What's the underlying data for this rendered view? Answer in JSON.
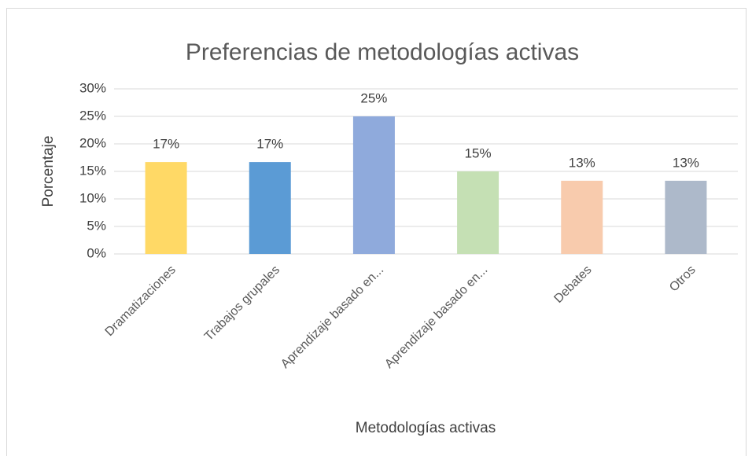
{
  "chart_data": {
    "type": "bar",
    "title": "Preferencias de metodologías activas",
    "x_label": "Metodologías activas",
    "y_label": "Porcentaje",
    "categories": [
      "Dramatizaciones",
      "Trabajos grupales",
      "Aprendizaje basado en...",
      "Aprendizaje basado en...",
      "Debates",
      "Otros"
    ],
    "values": [
      16.7,
      16.7,
      25,
      15,
      13.3,
      13.3
    ],
    "value_labels": [
      "17%",
      "17%",
      "25%",
      "15%",
      "13%",
      "13%"
    ],
    "colors": [
      "#FFD966",
      "#5B9BD5",
      "#8FAADC",
      "#C5E0B4",
      "#F8CBAD",
      "#ADB9CA"
    ],
    "ylim": [
      0,
      30
    ],
    "yticks": [
      {
        "value": 0,
        "label": "0%"
      },
      {
        "value": 5,
        "label": "5%"
      },
      {
        "value": 10,
        "label": "10%"
      },
      {
        "value": 15,
        "label": "15%"
      },
      {
        "value": 20,
        "label": "20%"
      },
      {
        "value": 25,
        "label": "25%"
      },
      {
        "value": 30,
        "label": "30%"
      }
    ],
    "grid": true
  }
}
